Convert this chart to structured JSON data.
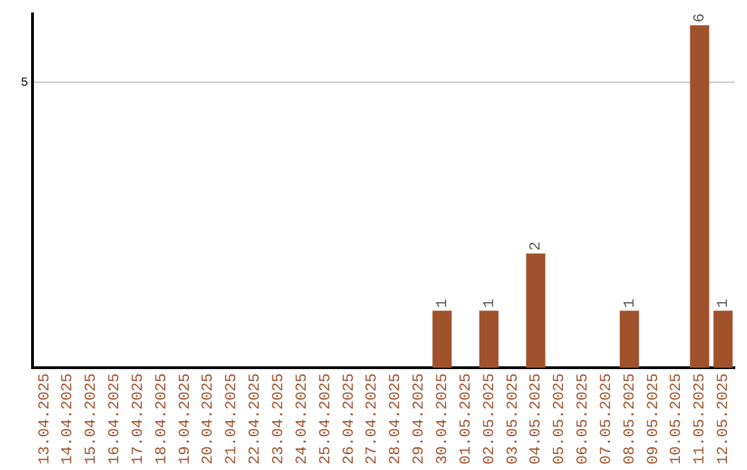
{
  "chart_data": {
    "type": "bar",
    "categories": [
      "13.04.2025",
      "14.04.2025",
      "15.04.2025",
      "16.04.2025",
      "17.04.2025",
      "18.04.2025",
      "19.04.2025",
      "20.04.2025",
      "21.04.2025",
      "22.04.2025",
      "23.04.2025",
      "24.04.2025",
      "25.04.2025",
      "26.04.2025",
      "27.04.2025",
      "28.04.2025",
      "29.04.2025",
      "30.04.2025",
      "01.05.2025",
      "02.05.2025",
      "03.05.2025",
      "04.05.2025",
      "05.05.2025",
      "06.05.2025",
      "07.05.2025",
      "08.05.2025",
      "09.05.2025",
      "10.05.2025",
      "11.05.2025",
      "12.05.2025"
    ],
    "values": [
      null,
      null,
      null,
      null,
      null,
      null,
      null,
      null,
      null,
      null,
      null,
      null,
      null,
      null,
      null,
      null,
      null,
      1,
      null,
      1,
      null,
      2,
      null,
      null,
      null,
      1,
      null,
      null,
      6,
      1
    ],
    "data_labels": true,
    "color": "#a0522d",
    "ylim": [
      0,
      6.2
    ],
    "yticks": [
      5
    ],
    "grid": "y",
    "legend": false
  }
}
